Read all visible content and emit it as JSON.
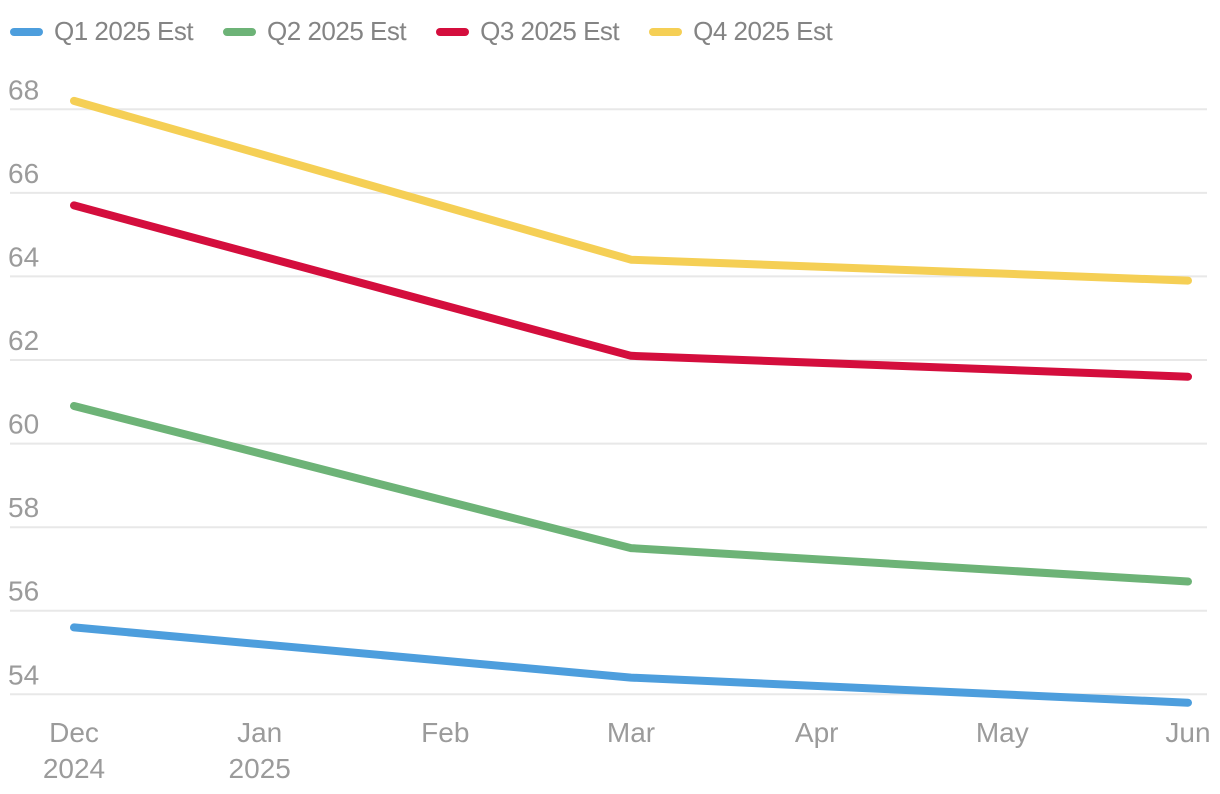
{
  "chart_data": {
    "type": "line",
    "title": "",
    "xlabel": "",
    "ylabel": "",
    "x_axis": {
      "tick_labels": [
        [
          "Dec",
          "2024"
        ],
        [
          "Jan",
          "2025"
        ],
        [
          "Feb"
        ],
        [
          "Mar"
        ],
        [
          "Apr"
        ],
        [
          "May"
        ],
        [
          "Jun"
        ]
      ]
    },
    "y_axis": {
      "ticks": [
        68,
        66,
        64,
        62,
        60,
        58,
        56,
        54
      ],
      "range": [
        53.5,
        68.5
      ],
      "grid": true
    },
    "legend_position": "top-left",
    "series": [
      {
        "name": "Q1 2025 Est",
        "color": "#4D9EDD",
        "points": [
          {
            "month": "Dec 2024",
            "i": 0,
            "value": 55.6
          },
          {
            "month": "Mar 2025",
            "i": 3,
            "value": 54.4
          },
          {
            "month": "Jun 2025",
            "i": 6,
            "value": 53.8
          }
        ]
      },
      {
        "name": "Q2 2025 Est",
        "color": "#6DB377",
        "points": [
          {
            "month": "Dec 2024",
            "i": 0,
            "value": 60.9
          },
          {
            "month": "Mar 2025",
            "i": 3,
            "value": 57.5
          },
          {
            "month": "Jun 2025",
            "i": 6,
            "value": 56.7
          }
        ]
      },
      {
        "name": "Q3 2025 Est",
        "color": "#D40E3D",
        "points": [
          {
            "month": "Dec 2024",
            "i": 0,
            "value": 65.7
          },
          {
            "month": "Mar 2025",
            "i": 3,
            "value": 62.1
          },
          {
            "month": "Jun 2025",
            "i": 6,
            "value": 61.6
          }
        ]
      },
      {
        "name": "Q4 2025 Est",
        "color": "#F5CF55",
        "points": [
          {
            "month": "Dec 2024",
            "i": 0,
            "value": 68.2
          },
          {
            "month": "Mar 2025",
            "i": 3,
            "value": 64.4
          },
          {
            "month": "Jun 2025",
            "i": 6,
            "value": 63.9
          }
        ]
      }
    ],
    "colors": {
      "grid": "#E8E8E8",
      "axis_labels": "#9B9B9B",
      "legend_text": "#848484",
      "background": "#FFFFFF"
    }
  }
}
